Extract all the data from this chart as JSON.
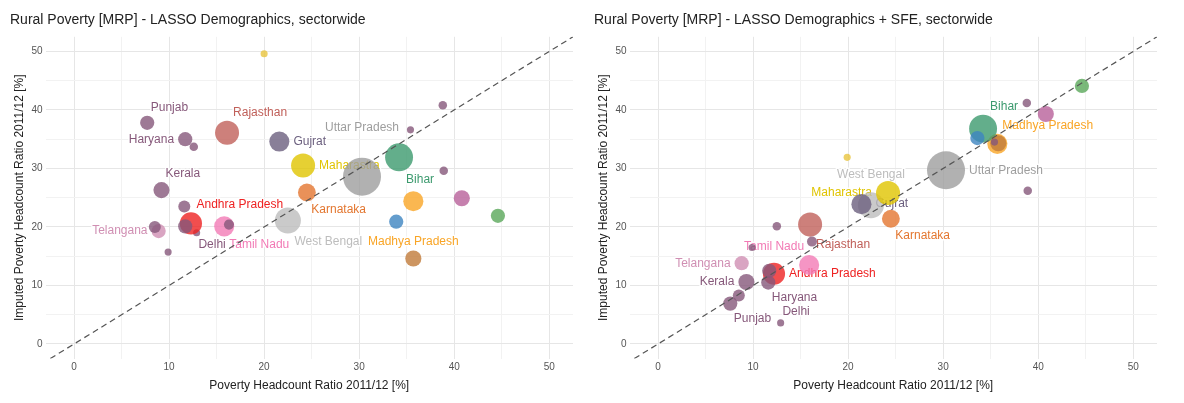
{
  "chart_data": [
    {
      "type": "bubble",
      "title": "Rural Poverty [MRP] - LASSO Demographics, sectorwide",
      "xlabel": "Poverty Headcount Ratio 2011/12 [%]",
      "ylabel": "Imputed Poverty Headcount Ratio 2011/12 [%]",
      "xlim": [
        -3,
        52.5
      ],
      "ylim": [
        -2.5,
        52.5
      ],
      "xticks": [
        0,
        {
          "value": 5,
          "label": null
        },
        10,
        {
          "value": 15,
          "label": null
        },
        20,
        {
          "value": 25,
          "label": null
        },
        30,
        {
          "value": 35,
          "label": null
        },
        40,
        {
          "value": 45,
          "label": null
        },
        50
      ],
      "yticks": [
        0,
        {
          "value": 5,
          "label": null
        },
        10,
        {
          "value": 15,
          "label": null
        },
        20,
        {
          "value": 25,
          "label": null
        },
        30,
        {
          "value": 35,
          "label": null
        },
        40,
        {
          "value": 45,
          "label": null
        },
        50
      ],
      "grid": true,
      "marker": "circle",
      "series": [
        {
          "type": "line",
          "x": [
            -2.5,
            52.5
          ],
          "values": [
            -2.5,
            52.5
          ],
          "color": "#555555",
          "line_style": "dashed",
          "marker": "none"
        },
        {
          "colors": [
            "#86587a",
            "#86587a",
            "#86587a",
            "#86587a",
            "#86587a",
            "#86587a",
            "#86587a",
            "#86587a",
            "#86587a",
            "#b8609a",
            "#5aa75a",
            "#3d85c0",
            "#c07a3a",
            "#e8c43e"
          ],
          "x": [
            12.6,
            11.6,
            11.7,
            8.5,
            9.9,
            16.3,
            38.8,
            35.4,
            38.9,
            40.8,
            44.6,
            33.9,
            35.7,
            20.0
          ],
          "values": [
            33.7,
            23.5,
            20.1,
            20.0,
            15.7,
            20.4,
            40.8,
            36.6,
            29.6,
            24.9,
            21.9,
            20.9,
            14.6,
            49.6
          ],
          "sizes": [
            0.05,
            0.1,
            0.14,
            0.1,
            0.035,
            0.07,
            0.05,
            0.035,
            0.05,
            0.18,
            0.14,
            0.14,
            0.18,
            0.035
          ]
        },
        {
          "name": "Punjab",
          "color": "#86587a",
          "x": [
            7.7
          ],
          "values": [
            37.8
          ],
          "sizes": [
            0.14
          ]
        },
        {
          "name": "Haryana",
          "color": "#86587a",
          "x": [
            11.7
          ],
          "values": [
            35.0
          ],
          "sizes": [
            0.14
          ]
        },
        {
          "name": "Rajasthan",
          "color": "#c0605a",
          "x": [
            16.1
          ],
          "values": [
            36.1
          ],
          "sizes": [
            0.4
          ]
        },
        {
          "name": "Gujrat",
          "color": "#6b5f7e",
          "x": [
            21.6
          ],
          "values": [
            34.6
          ],
          "sizes": [
            0.28
          ]
        },
        {
          "name": "Kerala",
          "color": "#86587a",
          "x": [
            9.2
          ],
          "values": [
            26.3
          ],
          "sizes": [
            0.18
          ]
        },
        {
          "name": "Andhra Pradesh",
          "color": "#ee2222",
          "x": [
            12.3
          ],
          "values": [
            20.6
          ],
          "sizes": [
            0.34
          ]
        },
        {
          "name": "Telangana",
          "color": "#d08fb3",
          "x": [
            8.9
          ],
          "values": [
            19.3
          ],
          "sizes": [
            0.14
          ]
        },
        {
          "name": "Delhi",
          "color": "#86587a",
          "x": [
            12.9
          ],
          "values": [
            19.0
          ],
          "sizes": [
            0.035
          ]
        },
        {
          "name": "Tamil Nadu",
          "color": "#f27ab5",
          "x": [
            15.8
          ],
          "values": [
            20.1
          ],
          "sizes": [
            0.28
          ]
        },
        {
          "name": "Maharastra",
          "color": "#e0c400",
          "x": [
            24.1
          ],
          "values": [
            30.5
          ],
          "sizes": [
            0.4
          ]
        },
        {
          "name": "Karnataka",
          "color": "#e3762f",
          "x": [
            24.5
          ],
          "values": [
            25.9
          ],
          "sizes": [
            0.22
          ]
        },
        {
          "name": "West Bengal",
          "color": "#bdbdbd",
          "x": [
            22.5
          ],
          "values": [
            21.1
          ],
          "sizes": [
            0.47
          ]
        },
        {
          "name": "Uttar Pradesh",
          "color": "#9e9e9e",
          "x": [
            30.3
          ],
          "values": [
            28.6
          ],
          "sizes": [
            1
          ]
        },
        {
          "name": "Bihar",
          "color": "#3c9a6e",
          "x": [
            34.2
          ],
          "values": [
            31.9
          ],
          "sizes": [
            0.54
          ]
        },
        {
          "name": "Madhya Pradesh",
          "color": "#f9a526",
          "x": [
            35.7
          ],
          "values": [
            24.4
          ],
          "sizes": [
            0.28
          ]
        }
      ]
    },
    {
      "type": "bubble",
      "title": "Rural Poverty [MRP] - LASSO Demographics + SFE, sectorwide",
      "xlabel": "Poverty Headcount Ratio 2011/12 [%]",
      "ylabel": "Imputed Poverty Headcount Ratio 2011/12 [%]",
      "xlim": [
        -3,
        52.5
      ],
      "ylim": [
        -2.5,
        52.5
      ],
      "xticks": [
        0,
        {
          "value": 5,
          "label": null
        },
        10,
        {
          "value": 15,
          "label": null
        },
        20,
        {
          "value": 25,
          "label": null
        },
        30,
        {
          "value": 35,
          "label": null
        },
        40,
        {
          "value": 45,
          "label": null
        },
        50
      ],
      "yticks": [
        0,
        {
          "value": 5,
          "label": null
        },
        10,
        {
          "value": 15,
          "label": null
        },
        20,
        {
          "value": 25,
          "label": null
        },
        30,
        {
          "value": 35,
          "label": null
        },
        40,
        {
          "value": 45,
          "label": null
        },
        50
      ],
      "grid": true,
      "marker": "circle",
      "series": [
        {
          "type": "line",
          "x": [
            -2.5,
            52.5
          ],
          "values": [
            -2.5,
            52.5
          ],
          "color": "#555555",
          "line_style": "dashed",
          "marker": "none"
        },
        {
          "colors": [
            "#e8c43e",
            "#86587a",
            "#86587a",
            "#86587a",
            "#86587a",
            "#86587a",
            "#3d85c0",
            "#c07a3a",
            "#86587a",
            "#86587a",
            "#b8609a",
            "#5aa75a",
            "#86587a"
          ],
          "x": [
            19.9,
            12.5,
            16.2,
            9.9,
            11.7,
            8.5,
            33.6,
            35.8,
            35.4,
            38.8,
            40.8,
            44.6,
            38.9
          ],
          "values": [
            31.9,
            20.1,
            17.5,
            16.5,
            12.5,
            8.3,
            35.2,
            34.3,
            34.5,
            41.2,
            39.3,
            44.1,
            26.2
          ],
          "sizes": [
            0.035,
            0.05,
            0.07,
            0.035,
            0.14,
            0.1,
            0.14,
            0.18,
            0.035,
            0.05,
            0.18,
            0.14,
            0.05
          ]
        },
        {
          "name": "Punjab",
          "color": "#86587a",
          "x": [
            7.6
          ],
          "values": [
            6.9
          ],
          "sizes": [
            0.14
          ]
        },
        {
          "name": "Haryana",
          "color": "#86587a",
          "x": [
            11.6
          ],
          "values": [
            10.5
          ],
          "sizes": [
            0.14
          ]
        },
        {
          "name": "Rajasthan",
          "color": "#c0605a",
          "x": [
            16.0
          ],
          "values": [
            20.4
          ],
          "sizes": [
            0.4
          ]
        },
        {
          "name": "Gujrat",
          "color": "#6b5f7e",
          "x": [
            21.4
          ],
          "values": [
            23.9
          ],
          "sizes": [
            0.28
          ]
        },
        {
          "name": "Kerala",
          "color": "#86587a",
          "x": [
            9.3
          ],
          "values": [
            10.6
          ],
          "sizes": [
            0.18
          ]
        },
        {
          "name": "Andhra Pradesh",
          "color": "#ee2222",
          "x": [
            12.2
          ],
          "values": [
            12.0
          ],
          "sizes": [
            0.34
          ]
        },
        {
          "name": "Telangana",
          "color": "#d08fb3",
          "x": [
            8.8
          ],
          "values": [
            13.8
          ],
          "sizes": [
            0.14
          ]
        },
        {
          "name": "Delhi",
          "color": "#86587a",
          "x": [
            12.9
          ],
          "values": [
            3.6
          ],
          "sizes": [
            0.035
          ]
        },
        {
          "name": "Tamil Nadu",
          "color": "#f27ab5",
          "x": [
            15.9
          ],
          "values": [
            13.5
          ],
          "sizes": [
            0.28
          ]
        },
        {
          "name": "Maharastra",
          "color": "#e0c400",
          "x": [
            24.2
          ],
          "values": [
            25.8
          ],
          "sizes": [
            0.4
          ]
        },
        {
          "name": "Karnataka",
          "color": "#e3762f",
          "x": [
            24.5
          ],
          "values": [
            21.4
          ],
          "sizes": [
            0.22
          ]
        },
        {
          "name": "West Bengal",
          "color": "#bdbdbd",
          "x": [
            22.4
          ],
          "values": [
            23.7
          ],
          "sizes": [
            0.47
          ]
        },
        {
          "name": "Uttar Pradesh",
          "color": "#9e9e9e",
          "x": [
            30.3
          ],
          "values": [
            29.7
          ],
          "sizes": [
            1
          ]
        },
        {
          "name": "Bihar",
          "color": "#3c9a6e",
          "x": [
            34.2
          ],
          "values": [
            36.8
          ],
          "sizes": [
            0.54
          ]
        },
        {
          "name": "Madhya Pradesh",
          "color": "#f9a526",
          "x": [
            35.7
          ],
          "values": [
            34.2
          ],
          "sizes": [
            0.28
          ]
        }
      ]
    }
  ]
}
